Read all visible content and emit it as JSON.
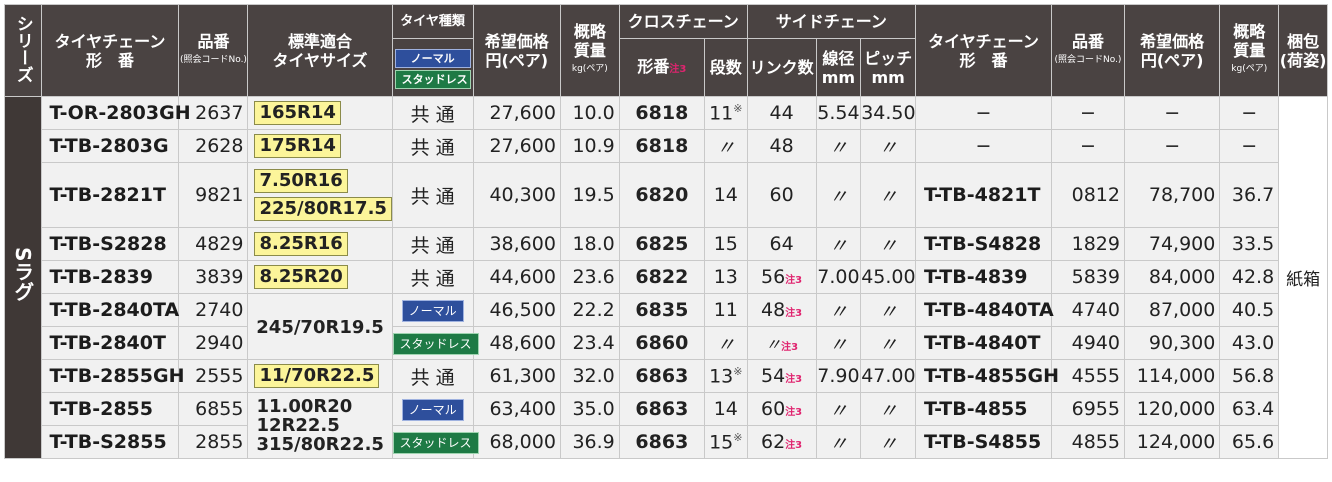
{
  "colors": {
    "header_bg": "#4a4342",
    "cell_bg": "#f1f1f1",
    "highlight": "#fcf59a",
    "normal_badge": "#2e4f9c",
    "studless_badge": "#1e7a45",
    "note_mark": "#e0246f"
  },
  "headers": {
    "series": "シリーズ",
    "model_line1": "タイヤチェーン",
    "model_line2": "形　番",
    "code_line1": "品番",
    "code_line2": "(照会コードNo.)",
    "tire_size_line1": "標準適合",
    "tire_size_line2": "タイヤサイズ",
    "tire_type": "タイヤ種類",
    "tire_type_normal": "ノーマル",
    "tire_type_studless": "スタッドレス",
    "price_line1": "希望価格",
    "price_line2": "円(ペア)",
    "weight_line1": "概略",
    "weight_line2": "質量",
    "weight_line3": "kg(ペア)",
    "cross_chain": "クロスチェーン",
    "cross_model": "形番",
    "cross_model_note": "注3",
    "stages": "段数",
    "side_chain": "サイドチェーン",
    "links": "リンク数",
    "wire_line1": "線径",
    "wire_line2": "mm",
    "pitch_line1": "ピッチ",
    "pitch_line2": "mm",
    "side_model_line1": "タイヤチェーン",
    "side_model_line2": "形　番",
    "side_code_line1": "品番",
    "side_code_line2": "(照会コードNo.)",
    "side_price_line1": "希望価格",
    "side_price_line2": "円(ペア)",
    "side_weight_line1": "概略",
    "side_weight_line2": "質量",
    "side_weight_line3": "kg(ペア)",
    "pack_line1": "梱包",
    "pack_line2": "(荷姿)"
  },
  "series_name": "Sラグ",
  "packaging": "紙箱",
  "common_label": "共 通",
  "ditto": "〃",
  "dash": "−",
  "asterisk": "※",
  "note3": "注3",
  "rows": [
    {
      "model": "T-OR-2803GH",
      "code": "2637",
      "tire": "165R14",
      "price": "27,600",
      "weight": "10.0",
      "cross": "6818",
      "stages": "11",
      "links": "44",
      "wire": "5.54",
      "pitch": "34.50",
      "s_model": "−",
      "s_code": "−",
      "s_price": "−",
      "s_weight": "−"
    },
    {
      "model": "T-TB-2803G",
      "code": "2628",
      "tire": "175R14",
      "price": "27,600",
      "weight": "10.9",
      "cross": "6818",
      "stages": "〃",
      "links": "48",
      "wire": "〃",
      "pitch": "〃",
      "s_model": "−",
      "s_code": "−",
      "s_price": "−",
      "s_weight": "−"
    },
    {
      "model": "T-TB-2821T",
      "code": "9821",
      "tire": "7.50R16",
      "tire2": "225/80R17.5",
      "price": "40,300",
      "weight": "19.5",
      "cross": "6820",
      "stages": "14",
      "links": "60",
      "wire": "〃",
      "pitch": "〃",
      "s_model": "T-TB-4821T",
      "s_code": "0812",
      "s_price": "78,700",
      "s_weight": "36.7"
    },
    {
      "model": "T-TB-S2828",
      "code": "4829",
      "tire": "8.25R16",
      "price": "38,600",
      "weight": "18.0",
      "cross": "6825",
      "stages": "15",
      "links": "64",
      "wire": "〃",
      "pitch": "〃",
      "s_model": "T-TB-S4828",
      "s_code": "1829",
      "s_price": "74,900",
      "s_weight": "33.5"
    },
    {
      "model": "T-TB-2839",
      "code": "3839",
      "tire": "8.25R20",
      "price": "44,600",
      "weight": "23.6",
      "cross": "6822",
      "stages": "13",
      "links": "56",
      "wire": "7.00",
      "pitch": "45.00",
      "s_model": "T-TB-4839",
      "s_code": "5839",
      "s_price": "84,000",
      "s_weight": "42.8"
    },
    {
      "model": "T-TB-2840TA",
      "code": "2740",
      "tire": "245/70R19.5",
      "price": "46,500",
      "weight": "22.2",
      "cross": "6835",
      "stages": "11",
      "links": "48",
      "wire": "〃",
      "pitch": "〃",
      "s_model": "T-TB-4840TA",
      "s_code": "4740",
      "s_price": "87,000",
      "s_weight": "40.5"
    },
    {
      "model": "T-TB-2840T",
      "code": "2940",
      "price": "48,600",
      "weight": "23.4",
      "cross": "6860",
      "stages": "〃",
      "links": "〃",
      "wire": "〃",
      "pitch": "〃",
      "s_model": "T-TB-4840T",
      "s_code": "4940",
      "s_price": "90,300",
      "s_weight": "43.0"
    },
    {
      "model": "T-TB-2855GH",
      "code": "2555",
      "tire": "11/70R22.5",
      "price": "61,300",
      "weight": "32.0",
      "cross": "6863",
      "stages": "13",
      "links": "54",
      "wire": "7.90",
      "pitch": "47.00",
      "s_model": "T-TB-4855GH",
      "s_code": "4555",
      "s_price": "114,000",
      "s_weight": "56.8"
    },
    {
      "model": "T-TB-2855",
      "code": "6855",
      "tire": "11.00R20",
      "tire2": "12R22.5",
      "tire3": "315/80R22.5",
      "price": "63,400",
      "weight": "35.0",
      "cross": "6863",
      "stages": "14",
      "links": "60",
      "wire": "〃",
      "pitch": "〃",
      "s_model": "T-TB-4855",
      "s_code": "6955",
      "s_price": "120,000",
      "s_weight": "63.4"
    },
    {
      "model": "T-TB-S2855",
      "code": "2855",
      "price": "68,000",
      "weight": "36.9",
      "cross": "6863",
      "stages": "15",
      "links": "62",
      "wire": "〃",
      "pitch": "〃",
      "s_model": "T-TB-S4855",
      "s_code": "4855",
      "s_price": "124,000",
      "s_weight": "65.6"
    }
  ]
}
